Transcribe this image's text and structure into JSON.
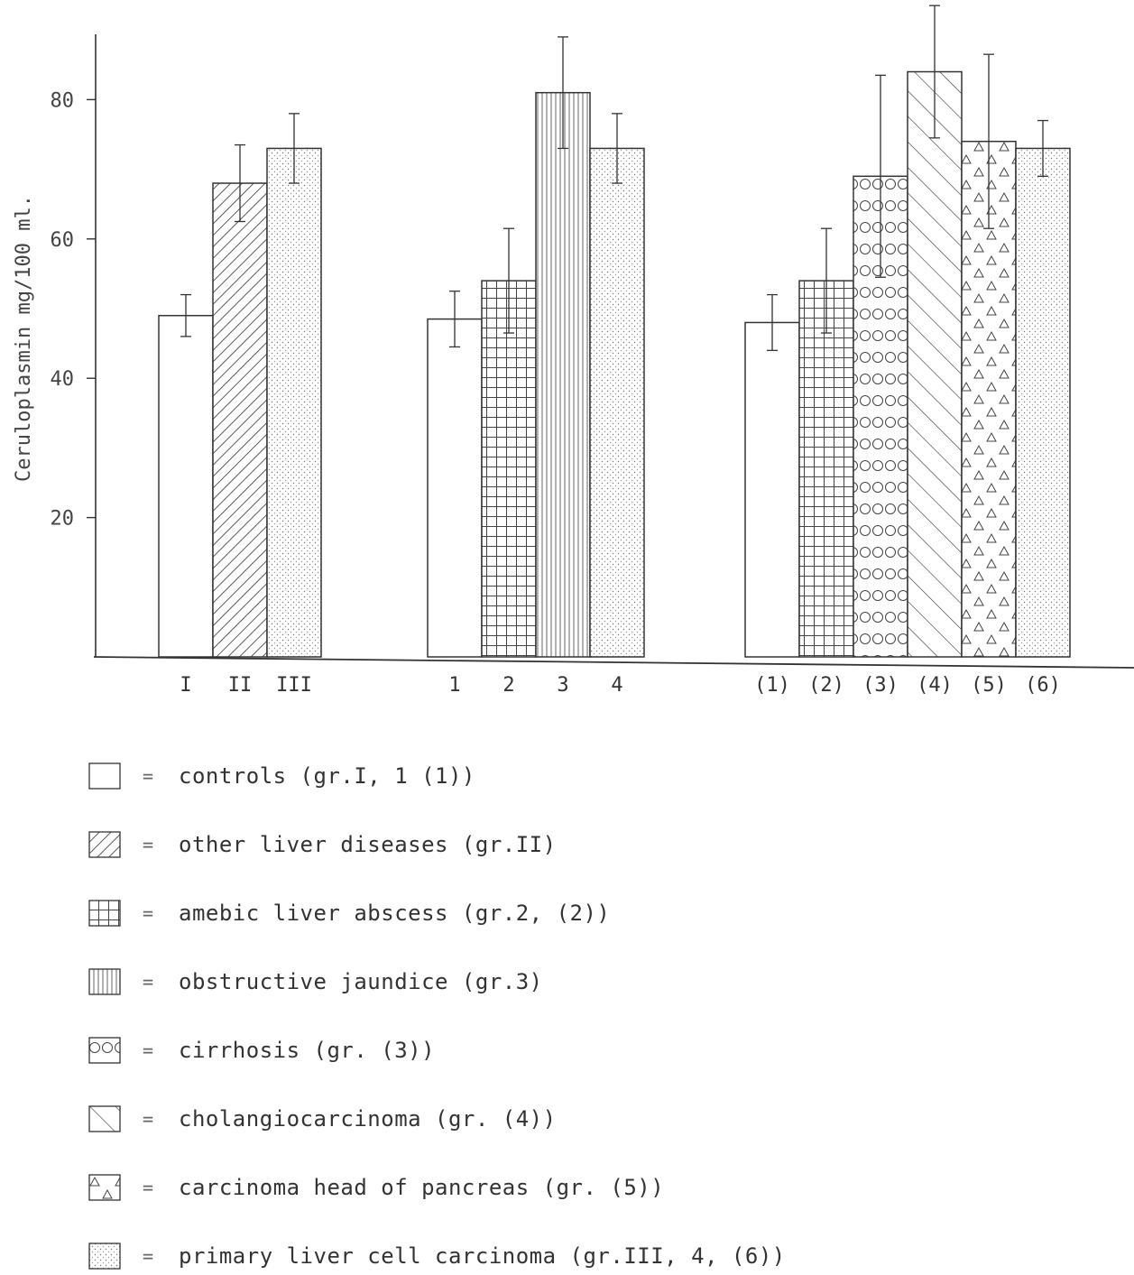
{
  "chart_data": {
    "type": "bar",
    "title": "",
    "ylabel": "Ceruloplasmin mg/100 ml.",
    "xlabel": "",
    "ylim": [
      0,
      90
    ],
    "yticks": [
      20,
      40,
      60,
      80
    ],
    "grid": false,
    "groups": [
      {
        "bars": [
          {
            "label": "I",
            "value": 49,
            "error": 3,
            "pattern": "controls"
          },
          {
            "label": "II",
            "value": 68,
            "error": 5.5,
            "pattern": "other_liver"
          },
          {
            "label": "III",
            "value": 73,
            "error": 5,
            "pattern": "plc"
          }
        ]
      },
      {
        "bars": [
          {
            "label": "1",
            "value": 48.5,
            "error": 4,
            "pattern": "controls"
          },
          {
            "label": "2",
            "value": 54,
            "error": 7.5,
            "pattern": "amebic"
          },
          {
            "label": "3",
            "value": 81,
            "error": 8,
            "pattern": "obstructive"
          },
          {
            "label": "4",
            "value": 73,
            "error": 5,
            "pattern": "plc"
          }
        ]
      },
      {
        "bars": [
          {
            "label": "(1)",
            "value": 48,
            "error": 4,
            "pattern": "controls"
          },
          {
            "label": "(2)",
            "value": 54,
            "error": 7.5,
            "pattern": "amebic"
          },
          {
            "label": "(3)",
            "value": 69,
            "error": 14.5,
            "pattern": "cirrhosis"
          },
          {
            "label": "(4)",
            "value": 84,
            "error": 9.5,
            "pattern": "cholangio"
          },
          {
            "label": "(5)",
            "value": 74,
            "error": 12.5,
            "pattern": "pancreas"
          },
          {
            "label": "(6)",
            "value": 73,
            "error": 4,
            "pattern": "plc"
          }
        ]
      }
    ],
    "legend": [
      {
        "pattern": "controls",
        "label": "controls (gr.I, 1 (1))"
      },
      {
        "pattern": "other_liver",
        "label": "other liver diseases (gr.II)"
      },
      {
        "pattern": "amebic",
        "label": "amebic liver abscess (gr.2, (2))"
      },
      {
        "pattern": "obstructive",
        "label": "obstructive jaundice (gr.3)"
      },
      {
        "pattern": "cirrhosis",
        "label": "cirrhosis (gr. (3))"
      },
      {
        "pattern": "cholangio",
        "label": "cholangiocarcinoma (gr. (4))"
      },
      {
        "pattern": "pancreas",
        "label": "carcinoma head of pancreas (gr. (5))"
      },
      {
        "pattern": "plc",
        "label": "primary liver cell carcinoma (gr.III, 4, (6))"
      }
    ],
    "legend_equals": "=",
    "legend_placement": "bottom",
    "colors": {
      "ink": "#333333",
      "paper": "#ffffff"
    }
  }
}
